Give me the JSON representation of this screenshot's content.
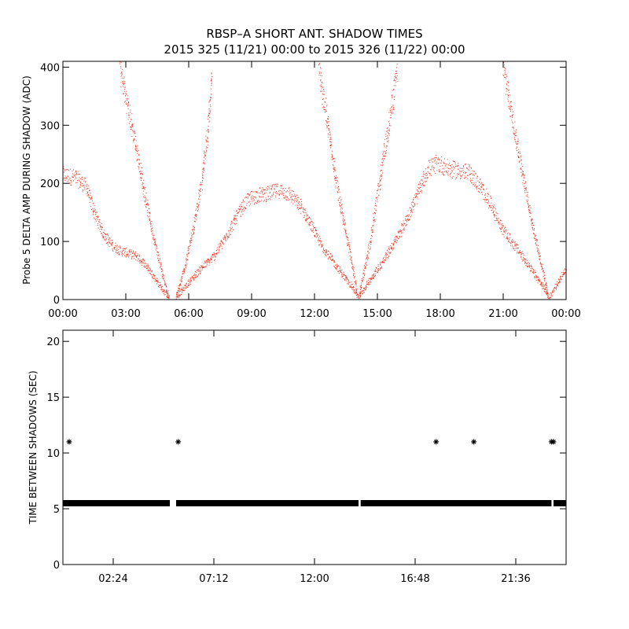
{
  "title": {
    "line1": "RBSP–A SHORT ANT. SHADOW TIMES",
    "line2": "2015 325 (11/21) 00:00 to 2015 326 (11/22) 00:00"
  },
  "chart_data": [
    {
      "type": "scatter",
      "name": "delta-amp",
      "ylabel": "Probe 5 DELTA AMP DURING SHADOW (ADC)",
      "xlabel": "",
      "xlim": [
        0,
        24
      ],
      "ylim": [
        0,
        410
      ],
      "x_ticks": [
        0,
        3,
        6,
        9,
        12,
        15,
        18,
        21,
        24
      ],
      "x_tick_labels": [
        "00:00",
        "03:00",
        "06:00",
        "09:00",
        "12:00",
        "15:00",
        "18:00",
        "21:00",
        "00:00"
      ],
      "y_ticks": [
        0,
        100,
        200,
        300,
        400
      ],
      "y_tick_labels": [
        "0",
        "100",
        "200",
        "300",
        "400"
      ],
      "color": "#e8321e",
      "series": [
        {
          "name": "orbit1-descending-branch",
          "x": [
            0.0,
            0.6,
            1.1,
            1.5,
            1.9,
            2.3,
            2.7,
            3.1,
            3.5,
            3.9,
            4.3,
            4.7,
            5.05
          ],
          "y": [
            215,
            210,
            195,
            150,
            115,
            95,
            85,
            80,
            75,
            62,
            42,
            20,
            3
          ]
        },
        {
          "name": "orbit1-steep-branch",
          "x": [
            2.7,
            3.1,
            3.5,
            3.9,
            4.3,
            4.7,
            5.05
          ],
          "y": [
            400,
            330,
            260,
            180,
            110,
            50,
            3
          ]
        },
        {
          "name": "orbit2-rising-branch",
          "x": [
            5.4,
            6.0,
            6.6,
            7.2,
            7.8,
            8.3,
            8.8,
            9.3,
            9.8,
            10.3,
            10.8,
            11.3,
            11.8,
            12.3,
            12.8,
            13.3,
            13.8,
            14.05
          ],
          "y": [
            5,
            30,
            55,
            75,
            110,
            145,
            172,
            180,
            183,
            188,
            182,
            162,
            130,
            95,
            70,
            45,
            22,
            5
          ]
        },
        {
          "name": "orbit2-steep-rising",
          "x": [
            5.4,
            5.8,
            6.2,
            6.6,
            6.9,
            7.1
          ],
          "y": [
            5,
            55,
            120,
            200,
            290,
            390
          ]
        },
        {
          "name": "orbit2-steep-descending",
          "x": [
            12.2,
            12.6,
            13.0,
            13.4,
            13.8,
            14.05
          ],
          "y": [
            390,
            310,
            210,
            130,
            60,
            5
          ]
        },
        {
          "name": "orbit3-rising-branch",
          "x": [
            14.1,
            14.7,
            15.3,
            15.9,
            16.4,
            16.9,
            17.4,
            17.9,
            18.4,
            18.9,
            19.4,
            19.9,
            20.4,
            20.9,
            21.4,
            21.9,
            22.4,
            22.9,
            23.15
          ],
          "y": [
            5,
            38,
            68,
            105,
            140,
            180,
            225,
            235,
            225,
            222,
            218,
            195,
            165,
            125,
            100,
            75,
            48,
            22,
            5
          ]
        },
        {
          "name": "orbit3-steep-rising",
          "x": [
            14.1,
            14.6,
            15.0,
            15.4,
            15.75,
            15.95
          ],
          "y": [
            5,
            90,
            180,
            270,
            350,
            400
          ]
        },
        {
          "name": "orbit3-steep-descending",
          "x": [
            21.0,
            21.5,
            22.0,
            22.5,
            23.0,
            23.15
          ],
          "y": [
            400,
            300,
            200,
            110,
            30,
            5
          ]
        },
        {
          "name": "orbit4-start",
          "x": [
            23.2,
            23.6,
            24.0
          ],
          "y": [
            5,
            30,
            55
          ]
        }
      ]
    },
    {
      "type": "scatter",
      "name": "time-between-shadows",
      "ylabel": "TIME BETWEEN SHADOWS (SEC)",
      "xlabel": "",
      "xlim": [
        0,
        24
      ],
      "ylim": [
        0,
        21
      ],
      "x_ticks": [
        2.4,
        7.2,
        12.0,
        16.8,
        21.6
      ],
      "x_tick_labels": [
        "02:24",
        "07:12",
        "12:00",
        "16:48",
        "21:36"
      ],
      "y_ticks": [
        0,
        5,
        10,
        15,
        20
      ],
      "y_tick_labels": [
        "0",
        "5",
        "10",
        "15",
        "20"
      ],
      "color": "#000000",
      "baseline_value": 5.5,
      "baseline_segments": [
        [
          0.0,
          5.1
        ],
        [
          5.4,
          14.1
        ],
        [
          14.2,
          23.3
        ],
        [
          23.4,
          24.0
        ]
      ],
      "outliers": {
        "x": [
          0.3,
          5.5,
          17.8,
          19.6,
          23.3,
          23.4
        ],
        "y": [
          11,
          11,
          11,
          11,
          11,
          11
        ]
      }
    }
  ]
}
